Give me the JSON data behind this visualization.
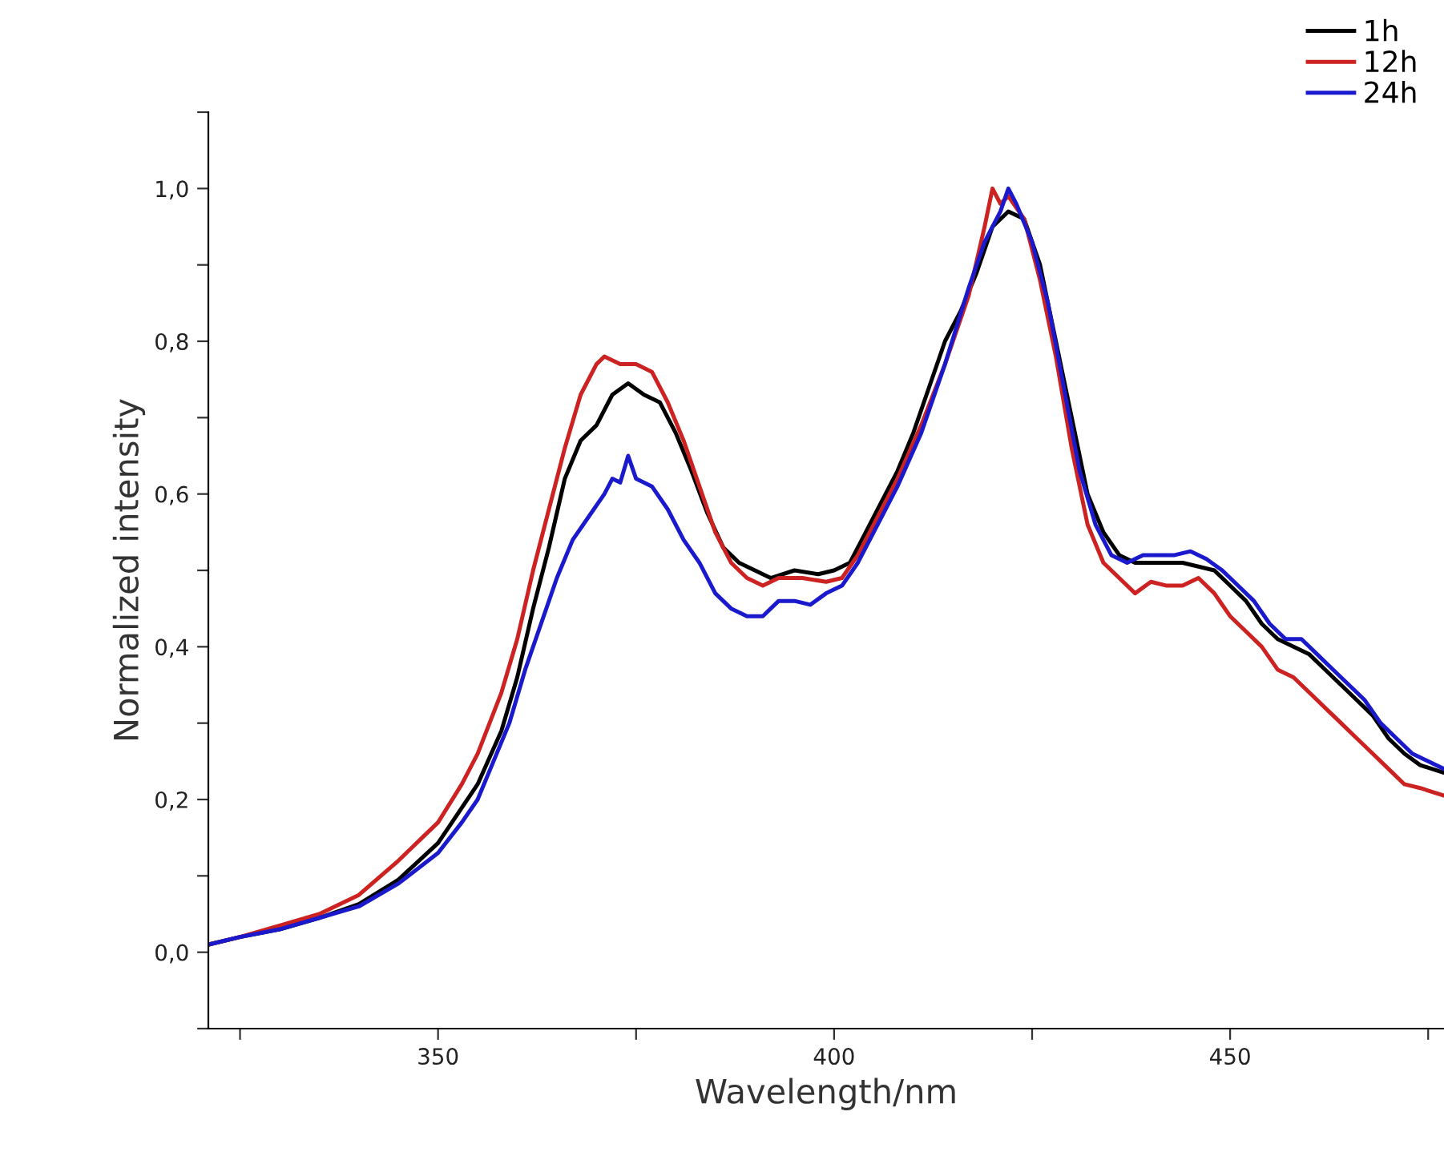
{
  "chart_data": {
    "type": "line",
    "xlabel": "Wavelength/nm",
    "ylabel": "Normalized intensity",
    "xlim": [
      321,
      477
    ],
    "ylim": [
      -0.1,
      1.1
    ],
    "xticks": [
      {
        "value": 325,
        "label": null
      },
      350,
      {
        "value": 375,
        "label": null
      },
      400,
      {
        "value": 425,
        "label": null
      },
      450,
      {
        "value": 475,
        "label": null
      }
    ],
    "yticks": [
      {
        "value": -0.1,
        "label": null
      },
      {
        "value": 0,
        "label": "0,0"
      },
      {
        "value": 0.1,
        "label": null
      },
      {
        "value": 0.2,
        "label": "0,2"
      },
      {
        "value": 0.3,
        "label": null
      },
      {
        "value": 0.4,
        "label": "0,4"
      },
      {
        "value": 0.5,
        "label": null
      },
      {
        "value": 0.6,
        "label": "0,6"
      },
      {
        "value": 0.7,
        "label": null
      },
      {
        "value": 0.8,
        "label": "0,8"
      },
      {
        "value": 0.9,
        "label": null
      },
      {
        "value": 1.0,
        "label": "1,0"
      },
      {
        "value": 1.1,
        "label": null
      }
    ],
    "grid": false,
    "legend": "top right",
    "marker": "none",
    "line_style": "solid",
    "series": [
      {
        "name": "1h",
        "color": "#000000",
        "x": [
          321,
          325,
          330,
          335,
          340,
          345,
          350,
          355,
          358,
          360,
          362,
          364,
          366,
          368,
          370,
          372,
          374,
          376,
          378,
          380,
          382,
          384,
          386,
          388,
          390,
          392,
          395,
          398,
          400,
          402,
          404,
          406,
          408,
          410,
          412,
          414,
          416,
          418,
          420,
          422,
          424,
          426,
          428,
          430,
          432,
          434,
          436,
          438,
          440,
          442,
          444,
          446,
          448,
          450,
          452,
          454,
          456,
          458,
          460,
          462,
          464,
          466,
          468,
          470,
          472,
          474,
          477
        ],
        "values": [
          0.01,
          0.02,
          0.03,
          0.045,
          0.063,
          0.095,
          0.143,
          0.22,
          0.29,
          0.36,
          0.45,
          0.53,
          0.62,
          0.67,
          0.69,
          0.73,
          0.745,
          0.73,
          0.72,
          0.68,
          0.63,
          0.575,
          0.53,
          0.51,
          0.5,
          0.49,
          0.5,
          0.495,
          0.5,
          0.51,
          0.55,
          0.59,
          0.63,
          0.68,
          0.74,
          0.8,
          0.84,
          0.89,
          0.95,
          0.97,
          0.96,
          0.9,
          0.8,
          0.7,
          0.6,
          0.55,
          0.52,
          0.51,
          0.51,
          0.51,
          0.51,
          0.505,
          0.5,
          0.48,
          0.46,
          0.43,
          0.41,
          0.4,
          0.39,
          0.37,
          0.35,
          0.33,
          0.31,
          0.28,
          0.26,
          0.245,
          0.235
        ]
      },
      {
        "name": "12h",
        "color": "#cc2222",
        "x": [
          321,
          325,
          330,
          335,
          340,
          345,
          348,
          350,
          353,
          355,
          358,
          360,
          362,
          364,
          366,
          368,
          370,
          371,
          373,
          375,
          377,
          379,
          381,
          383,
          385,
          387,
          389,
          391,
          393,
          396,
          399,
          401,
          403,
          405,
          408,
          411,
          414,
          417,
          419,
          420,
          421,
          422,
          424,
          426,
          428,
          430,
          432,
          434,
          436,
          438,
          440,
          442,
          444,
          446,
          448,
          450,
          452,
          454,
          456,
          458,
          460,
          462,
          464,
          466,
          468,
          470,
          472,
          474,
          477
        ],
        "values": [
          0.01,
          0.02,
          0.035,
          0.05,
          0.075,
          0.12,
          0.15,
          0.17,
          0.22,
          0.26,
          0.34,
          0.41,
          0.5,
          0.58,
          0.66,
          0.73,
          0.77,
          0.78,
          0.77,
          0.77,
          0.76,
          0.72,
          0.67,
          0.61,
          0.55,
          0.51,
          0.49,
          0.48,
          0.49,
          0.49,
          0.485,
          0.49,
          0.52,
          0.56,
          0.62,
          0.69,
          0.77,
          0.86,
          0.95,
          1.0,
          0.98,
          0.99,
          0.96,
          0.88,
          0.78,
          0.66,
          0.56,
          0.51,
          0.49,
          0.47,
          0.485,
          0.48,
          0.48,
          0.49,
          0.47,
          0.44,
          0.42,
          0.4,
          0.37,
          0.36,
          0.34,
          0.32,
          0.3,
          0.28,
          0.26,
          0.24,
          0.22,
          0.215,
          0.205
        ]
      },
      {
        "name": "24h",
        "color": "#1a1acc",
        "x": [
          321,
          325,
          330,
          335,
          340,
          345,
          350,
          353,
          355,
          357,
          359,
          361,
          363,
          365,
          367,
          369,
          371,
          372,
          373,
          374,
          375,
          377,
          379,
          381,
          383,
          385,
          387,
          389,
          391,
          393,
          395,
          397,
          399,
          401,
          403,
          405,
          408,
          411,
          414,
          417,
          419,
          421,
          422,
          423,
          425,
          427,
          429,
          431,
          433,
          435,
          437,
          439,
          441,
          443,
          445,
          447,
          449,
          451,
          453,
          455,
          457,
          459,
          461,
          463,
          465,
          467,
          469,
          471,
          473,
          475,
          477
        ],
        "values": [
          0.01,
          0.02,
          0.03,
          0.045,
          0.06,
          0.09,
          0.13,
          0.17,
          0.2,
          0.25,
          0.3,
          0.37,
          0.43,
          0.49,
          0.54,
          0.57,
          0.6,
          0.62,
          0.615,
          0.65,
          0.62,
          0.61,
          0.58,
          0.54,
          0.51,
          0.47,
          0.45,
          0.44,
          0.44,
          0.46,
          0.46,
          0.455,
          0.47,
          0.48,
          0.51,
          0.55,
          0.61,
          0.68,
          0.77,
          0.87,
          0.93,
          0.97,
          1.0,
          0.98,
          0.93,
          0.85,
          0.74,
          0.63,
          0.56,
          0.52,
          0.51,
          0.52,
          0.52,
          0.52,
          0.525,
          0.515,
          0.5,
          0.48,
          0.46,
          0.43,
          0.41,
          0.41,
          0.39,
          0.37,
          0.35,
          0.33,
          0.3,
          0.28,
          0.26,
          0.25,
          0.24
        ]
      }
    ]
  }
}
